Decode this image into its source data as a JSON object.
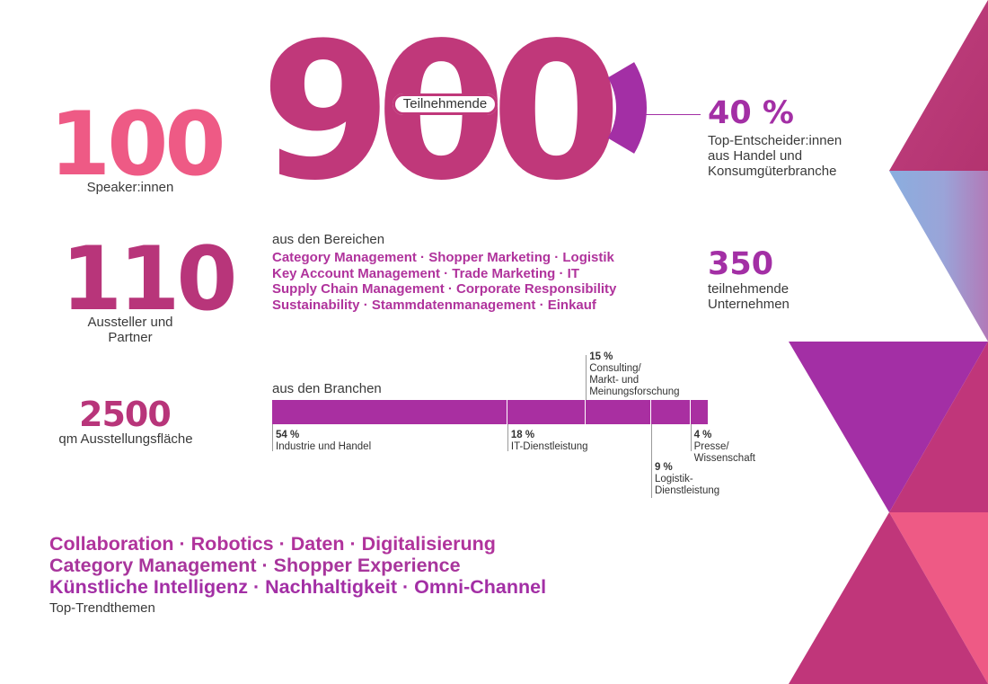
{
  "colors": {
    "magenta": "#c0367a",
    "purple": "#a32fa5",
    "pink": "#ee5a85",
    "blue": "#8aaedf"
  },
  "speakers": {
    "value": "100",
    "label": "Speaker:innen"
  },
  "exhibitors": {
    "value": "110",
    "label": "Aussteller und\nPartner"
  },
  "area": {
    "value": "2500",
    "label": "qm Ausstellungsfläche"
  },
  "participants": {
    "value": "900",
    "label": "Teilnehmende",
    "decision_share": 40
  },
  "decision_makers": {
    "value": "40 %",
    "label": "Top-Entscheider:innen\naus Handel und\nKonsumgüterbranche"
  },
  "companies": {
    "value": "350",
    "label": "teilnehmende\nUnternehmen"
  },
  "areas": {
    "intro": "aus den Bereichen",
    "lines": [
      "Category Management · Shopper Marketing · Logistik",
      "Key Account Management · Trade Marketing · IT",
      "Supply Chain Management · Corporate Responsibility",
      "Sustainability · Stammdatenmanagement · Einkauf"
    ]
  },
  "branches": {
    "intro": "aus den Branchen",
    "segments": [
      {
        "pct": 54,
        "pct_label": "54 %",
        "name": "Industrie und Handel"
      },
      {
        "pct": 18,
        "pct_label": "18 %",
        "name": "IT-Dienstleistung"
      },
      {
        "pct": 15,
        "pct_label": "15 %",
        "name": "Consulting/\nMarkt- und\nMeinungsforschung"
      },
      {
        "pct": 9,
        "pct_label": "9 %",
        "name": "Logistik-\nDienstleistung"
      },
      {
        "pct": 4,
        "pct_label": "4 %",
        "name": "Presse/\nWissenschaft"
      }
    ]
  },
  "trends": {
    "lines": [
      "Collaboration · Robotics · Daten · Digitalisierung",
      "Category Management · Shopper Experience",
      "Künstliche Intelligenz · Nachhaltigkeit · Omni-Channel"
    ],
    "label": "Top-Trendthemen"
  }
}
